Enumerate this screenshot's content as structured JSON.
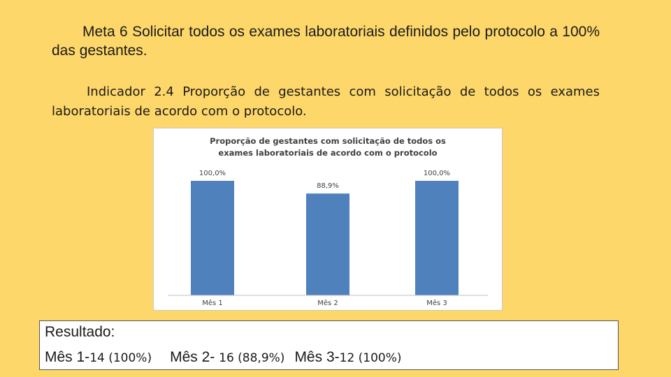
{
  "meta": {
    "label": "Meta 6",
    "text": "Solicitar todos os exames laboratoriais definidos pelo protocolo a 100% das gestantes."
  },
  "indicador": {
    "label": "Indicador 2.4",
    "text": "Proporção de gestantes com solicitação de todos os exames laboratoriais de acordo com o protocolo."
  },
  "chart_data": {
    "type": "bar",
    "title": "Proporção de gestantes com solicitação de todos os exames laboratoriais de acordo com o protocolo",
    "title_lines": [
      "Proporção de gestantes com solicitação de todos os",
      "exames laboratoriais de acordo com o protocolo"
    ],
    "categories": [
      "Mês 1",
      "Mês 2",
      "Mês 3"
    ],
    "values": [
      100.0,
      88.9,
      100.0
    ],
    "data_labels": [
      "100,0%",
      "88,9%",
      "100,0%"
    ],
    "ylim": [
      0,
      100
    ],
    "grid": false,
    "bar_color": "#4f81bd"
  },
  "resultado": {
    "title": "Resultado:",
    "m1_label": "Mês 1-",
    "m1_value": "14 (100%)",
    "m2_label": "Mês 2-",
    "m2_value": "16 (88,9%)",
    "m3_label": "Mês 3-",
    "m3_value": "12 (100%)"
  }
}
